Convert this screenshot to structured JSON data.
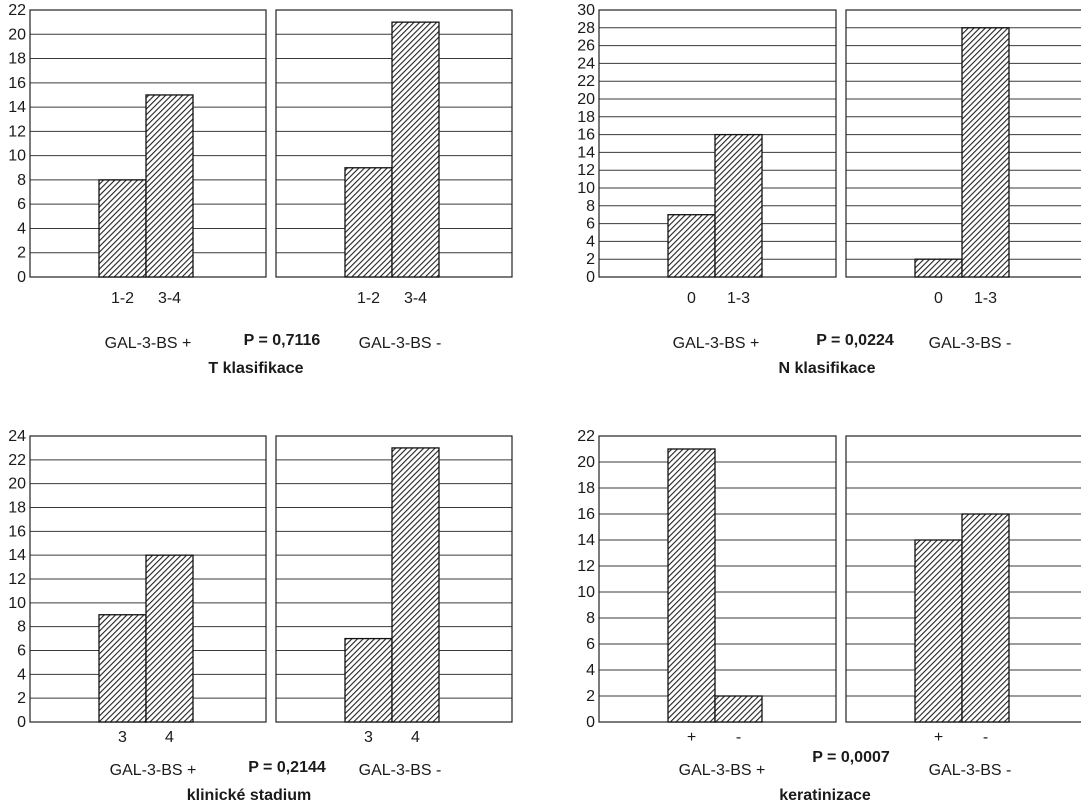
{
  "chart_data": [
    {
      "type": "bar",
      "ylim": [
        0,
        22
      ],
      "yticks": [
        0,
        2,
        4,
        6,
        8,
        10,
        12,
        14,
        16,
        18,
        20,
        22
      ],
      "grid": "horizontal",
      "group_labels": [
        "GAL-3-BS +",
        "GAL-3-BS -"
      ],
      "p_value": "P = 0,7116",
      "title": "T klasifikace",
      "groups": [
        {
          "name": "GAL-3-BS +",
          "categories": [
            "1-2",
            "3-4"
          ],
          "values": [
            8,
            15
          ]
        },
        {
          "name": "GAL-3-BS -",
          "categories": [
            "1-2",
            "3-4"
          ],
          "values": [
            9,
            21
          ]
        }
      ]
    },
    {
      "type": "bar",
      "ylim": [
        0,
        30
      ],
      "yticks": [
        0,
        2,
        4,
        6,
        8,
        10,
        12,
        14,
        16,
        18,
        20,
        22,
        24,
        26,
        28,
        30
      ],
      "grid": "horizontal",
      "group_labels": [
        "GAL-3-BS +",
        "GAL-3-BS -"
      ],
      "p_value": "P = 0,0224",
      "title": "N klasifikace",
      "groups": [
        {
          "name": "GAL-3-BS +",
          "categories": [
            "0",
            "1-3"
          ],
          "values": [
            7,
            16
          ]
        },
        {
          "name": "GAL-3-BS -",
          "categories": [
            "0",
            "1-3"
          ],
          "values": [
            2,
            28
          ]
        }
      ]
    },
    {
      "type": "bar",
      "ylim": [
        0,
        24
      ],
      "yticks": [
        0,
        2,
        4,
        6,
        8,
        10,
        12,
        14,
        16,
        18,
        20,
        22,
        24
      ],
      "grid": "horizontal",
      "group_labels": [
        "GAL-3-BS +",
        "GAL-3-BS -"
      ],
      "p_value": "P = 0,2144",
      "title": "klinické stadium",
      "groups": [
        {
          "name": "GAL-3-BS +",
          "categories": [
            "3",
            "4"
          ],
          "values": [
            9,
            14
          ]
        },
        {
          "name": "GAL-3-BS -",
          "categories": [
            "3",
            "4"
          ],
          "values": [
            7,
            23
          ]
        }
      ]
    },
    {
      "type": "bar",
      "ylim": [
        0,
        22
      ],
      "yticks": [
        0,
        2,
        4,
        6,
        8,
        10,
        12,
        14,
        16,
        18,
        20,
        22
      ],
      "grid": "horizontal",
      "group_labels": [
        "GAL-3-BS +",
        "GAL-3-BS -"
      ],
      "p_value": "P = 0,0007",
      "title": "keratinizace",
      "groups": [
        {
          "name": "GAL-3-BS +",
          "categories": [
            "+",
            "-"
          ],
          "values": [
            21,
            2
          ]
        },
        {
          "name": "GAL-3-BS -",
          "categories": [
            "+",
            "-"
          ],
          "values": [
            14,
            16
          ]
        }
      ]
    }
  ]
}
